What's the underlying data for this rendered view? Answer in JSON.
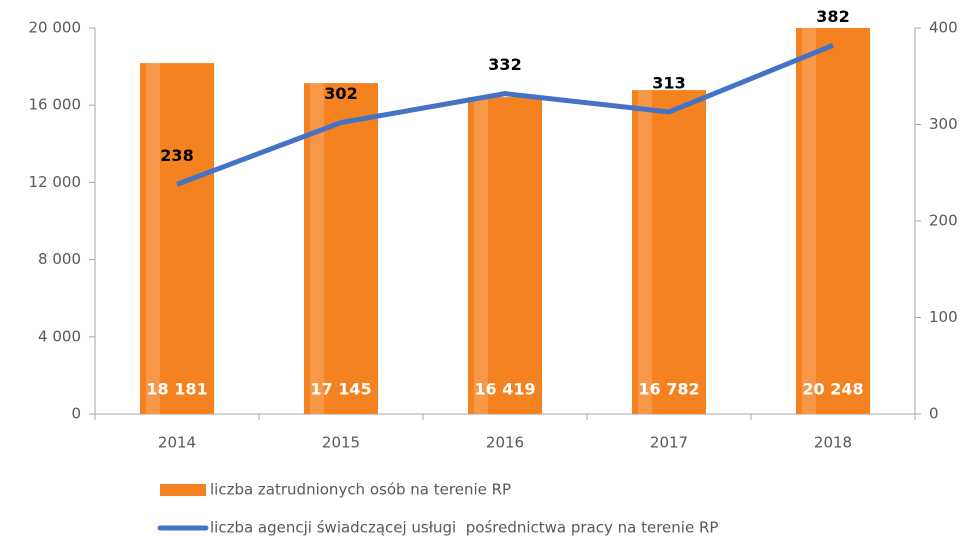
{
  "chart_data": {
    "type": "bar",
    "categories": [
      "2014",
      "2015",
      "2016",
      "2017",
      "2018"
    ],
    "series": [
      {
        "name": "liczba zatrudnionych osób na terenie RP",
        "type": "bar",
        "color": "#f58220",
        "values": [
          18181,
          17145,
          16419,
          16782,
          20248
        ],
        "value_labels": [
          "18 181",
          "17 145",
          "16 419",
          "16 782",
          "20 248"
        ]
      },
      {
        "name": "liczba agencji świadczącej usługi  pośrednictwa pracy na terenie RP",
        "type": "line",
        "axis": "y2",
        "color": "#4472c4",
        "values": [
          238,
          302,
          332,
          313,
          382
        ]
      }
    ],
    "ylim": [
      0,
      20000
    ],
    "yticks": [
      0,
      {
        "value": 4000,
        "label": "4 000"
      },
      {
        "value": 8000,
        "label": "8 000"
      },
      {
        "value": 12000,
        "label": "12 000"
      },
      {
        "value": 16000,
        "label": "16 000"
      },
      {
        "value": 20000,
        "label": "20 000"
      }
    ],
    "y2lim": [
      0,
      400
    ],
    "y2ticks": [
      0,
      100,
      200,
      300,
      400
    ],
    "grid": false
  }
}
